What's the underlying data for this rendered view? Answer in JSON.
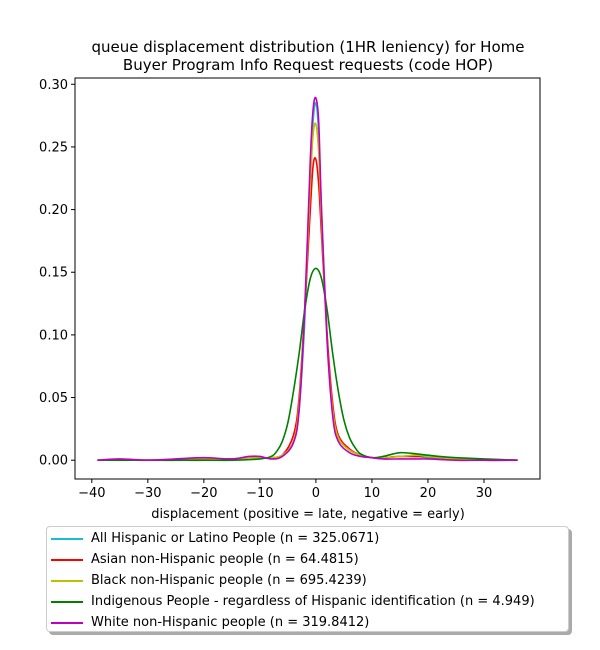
{
  "chart_data": {
    "type": "line",
    "title_lines": [
      "queue displacement distribution (1HR leniency) for Home",
      "Buyer Program Info Request  requests (code HOP)"
    ],
    "xlabel": "displacement (positive = late, negative = early)",
    "ylabel": "",
    "xlim": [
      -43,
      40
    ],
    "ylim": [
      -0.015,
      0.305
    ],
    "xticks": [
      -40,
      -30,
      -20,
      -10,
      0,
      10,
      20,
      30
    ],
    "yticks": [
      0.0,
      0.05,
      0.1,
      0.15,
      0.2,
      0.25,
      0.3
    ],
    "xtick_labels": [
      "−40",
      "−30",
      "−20",
      "−10",
      "0",
      "10",
      "20",
      "30"
    ],
    "ytick_labels": [
      "0.00",
      "0.05",
      "0.10",
      "0.15",
      "0.20",
      "0.25",
      "0.30"
    ],
    "grid": false,
    "legend_position": "below",
    "series": [
      {
        "name": "All Hispanic or Latino People (n = 325.0671)",
        "color": "#17becf",
        "x": [
          -39,
          -35,
          -30,
          -25,
          -20,
          -15,
          -12,
          -10,
          -8,
          -6,
          -4,
          -3,
          -2,
          -1,
          -0.5,
          0,
          0.5,
          1,
          2,
          3,
          4,
          6,
          8,
          10,
          12,
          15,
          18,
          20,
          25,
          30,
          36
        ],
        "y": [
          0.0,
          0.0,
          0.0,
          0.0,
          0.001,
          0.001,
          0.002,
          0.002,
          0.002,
          0.004,
          0.015,
          0.04,
          0.11,
          0.22,
          0.27,
          0.285,
          0.26,
          0.2,
          0.1,
          0.04,
          0.018,
          0.008,
          0.004,
          0.002,
          0.002,
          0.003,
          0.003,
          0.002,
          0.001,
          0.0,
          0.0
        ]
      },
      {
        "name": "Asian non-Hispanic people (n = 64.4815)",
        "color": "#ff0000",
        "x": [
          -39,
          -35,
          -30,
          -25,
          -20,
          -15,
          -12,
          -10,
          -8,
          -6,
          -4,
          -3,
          -2,
          -1,
          -0.5,
          0,
          0.5,
          1,
          2,
          3,
          4,
          6,
          8,
          10,
          12,
          15,
          18,
          20,
          22,
          25,
          30,
          36
        ],
        "y": [
          0.0,
          0.0,
          0.0,
          0.0,
          0.0,
          0.001,
          0.002,
          0.002,
          0.002,
          0.004,
          0.02,
          0.05,
          0.12,
          0.2,
          0.235,
          0.24,
          0.22,
          0.18,
          0.1,
          0.045,
          0.02,
          0.009,
          0.004,
          0.002,
          0.002,
          0.003,
          0.003,
          0.003,
          0.002,
          0.001,
          0.0,
          0.0
        ]
      },
      {
        "name": "Black non-Hispanic people (n = 695.4239)",
        "color": "#bfbf00",
        "x": [
          -39,
          -35,
          -30,
          -25,
          -20,
          -15,
          -12,
          -10,
          -8,
          -6,
          -4,
          -3,
          -2,
          -1,
          -0.5,
          0,
          0.5,
          1,
          2,
          3,
          4,
          6,
          8,
          10,
          12,
          15,
          18,
          20,
          25,
          30,
          36
        ],
        "y": [
          0.0,
          0.0,
          0.0,
          0.0,
          0.001,
          0.001,
          0.002,
          0.002,
          0.002,
          0.004,
          0.015,
          0.045,
          0.12,
          0.22,
          0.26,
          0.268,
          0.245,
          0.19,
          0.095,
          0.04,
          0.018,
          0.008,
          0.004,
          0.002,
          0.002,
          0.003,
          0.004,
          0.003,
          0.001,
          0.0,
          0.0
        ]
      },
      {
        "name": "Indigenous People - regardless of Hispanic identification (n = 4.949)",
        "color": "#008000",
        "x": [
          -39,
          -35,
          -30,
          -25,
          -20,
          -15,
          -10,
          -8,
          -7,
          -6,
          -5,
          -4,
          -3,
          -2,
          -1,
          0,
          1,
          2,
          3,
          4,
          5,
          6,
          7,
          8,
          10,
          12,
          15,
          18,
          20,
          22,
          25,
          30,
          36
        ],
        "y": [
          0.0,
          0.0,
          0.0,
          0.0,
          0.0,
          0.0,
          0.001,
          0.003,
          0.007,
          0.015,
          0.03,
          0.055,
          0.085,
          0.12,
          0.145,
          0.153,
          0.145,
          0.12,
          0.085,
          0.055,
          0.032,
          0.018,
          0.01,
          0.005,
          0.002,
          0.003,
          0.006,
          0.005,
          0.004,
          0.003,
          0.002,
          0.001,
          0.0
        ]
      },
      {
        "name": "White non-Hispanic people (n = 319.8412)",
        "color": "#bf00bf",
        "x": [
          -39,
          -35,
          -30,
          -25,
          -20,
          -15,
          -12,
          -10,
          -8,
          -6,
          -4,
          -3,
          -2,
          -1,
          -0.5,
          0,
          0.5,
          1,
          2,
          3,
          4,
          6,
          8,
          10,
          12,
          15,
          18,
          20,
          25,
          30,
          36
        ],
        "y": [
          0.0,
          0.001,
          0.0,
          0.001,
          0.002,
          0.001,
          0.003,
          0.003,
          0.001,
          0.003,
          0.014,
          0.04,
          0.12,
          0.24,
          0.28,
          0.289,
          0.27,
          0.2,
          0.095,
          0.035,
          0.015,
          0.006,
          0.003,
          0.002,
          0.001,
          0.001,
          0.001,
          0.001,
          0.0,
          0.0,
          0.0
        ]
      }
    ]
  }
}
